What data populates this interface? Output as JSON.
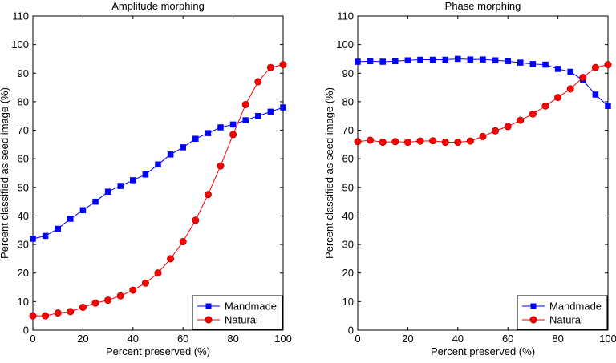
{
  "chart_data": [
    {
      "type": "line",
      "title": "Amplitude morphing",
      "xlabel": "Percent preserved (%)",
      "ylabel": "Percent classified as seed image (%)",
      "xlim": [
        0,
        100
      ],
      "ylim": [
        0,
        110
      ],
      "xticks": [
        0,
        20,
        40,
        60,
        80,
        100
      ],
      "yticks": [
        0,
        10,
        20,
        30,
        40,
        50,
        60,
        70,
        80,
        90,
        100,
        110
      ],
      "grid": false,
      "legend_position": "bottom-right",
      "x": [
        0,
        5,
        10,
        15,
        20,
        25,
        30,
        35,
        40,
        45,
        50,
        55,
        60,
        65,
        70,
        75,
        80,
        85,
        90,
        95,
        100
      ],
      "series": [
        {
          "name": "Mandmade",
          "color": "#0000ff",
          "marker": "square",
          "values": [
            32,
            33,
            35.5,
            39,
            42,
            45,
            48.5,
            50.5,
            52.5,
            54.5,
            58,
            61.5,
            64,
            67,
            69,
            71,
            72,
            73.5,
            75,
            76.5,
            78
          ]
        },
        {
          "name": "Natural",
          "color": "#ff0000",
          "marker": "circle",
          "values": [
            5,
            5,
            6,
            6.5,
            8,
            9.5,
            10.5,
            12,
            14,
            16.5,
            20,
            25,
            31,
            38.5,
            47.5,
            57.5,
            68.5,
            79,
            87,
            92,
            93
          ]
        }
      ]
    },
    {
      "type": "line",
      "title": "Phase morphing",
      "xlabel": "Percent preserved (%)",
      "ylabel": "Percent classified as seed image (%)",
      "xlim": [
        0,
        100
      ],
      "ylim": [
        0,
        110
      ],
      "xticks": [
        0,
        20,
        40,
        60,
        80,
        100
      ],
      "yticks": [
        0,
        10,
        20,
        30,
        40,
        50,
        60,
        70,
        80,
        90,
        100,
        110
      ],
      "grid": false,
      "legend_position": "bottom-right",
      "x": [
        0,
        5,
        10,
        15,
        20,
        25,
        30,
        35,
        40,
        45,
        50,
        55,
        60,
        65,
        70,
        75,
        80,
        85,
        90,
        95,
        100
      ],
      "series": [
        {
          "name": "Mandmade",
          "color": "#0000ff",
          "marker": "square",
          "values": [
            94,
            94.2,
            94,
            94.2,
            94.5,
            94.7,
            94.7,
            94.7,
            95,
            94.8,
            94.8,
            94.5,
            94.2,
            93.7,
            93.2,
            93,
            91.5,
            90.5,
            87.5,
            82.5,
            78.5
          ]
        },
        {
          "name": "Natural",
          "color": "#ff0000",
          "marker": "circle",
          "values": [
            66,
            66.5,
            65.8,
            66,
            65.8,
            66.2,
            66.3,
            65.8,
            65.8,
            66.2,
            67.8,
            69.8,
            71.3,
            73.5,
            75.7,
            78.5,
            81.5,
            84.5,
            88.5,
            92,
            93
          ]
        }
      ]
    }
  ]
}
